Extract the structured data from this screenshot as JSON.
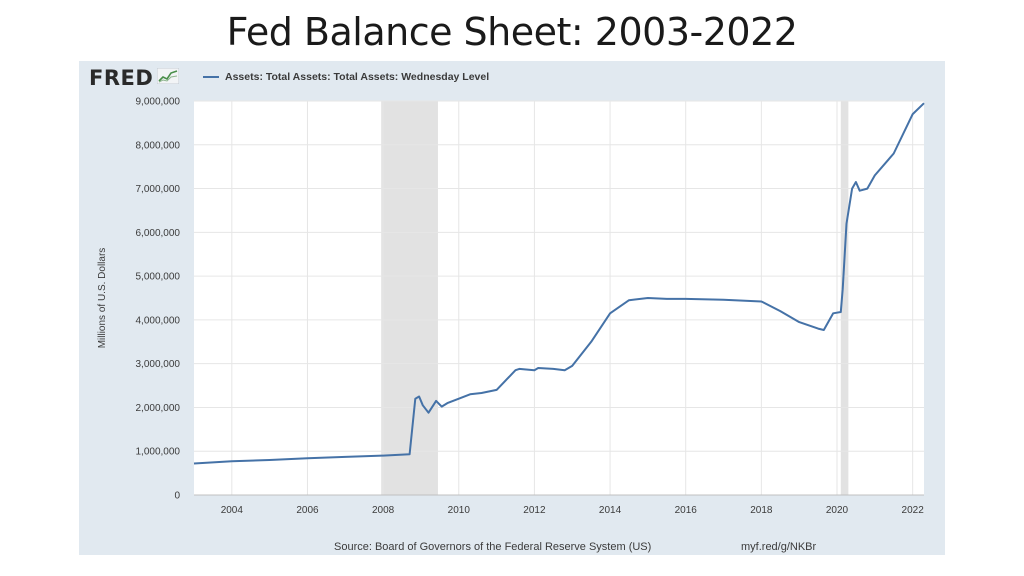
{
  "slide": {
    "title": "Fed Balance Sheet: 2003-2022"
  },
  "fred": {
    "logo_text": "FRED",
    "logo_icon": "fred-chart-icon",
    "source": "Source: Board of Governors of the Federal Reserve System (US)",
    "link": "myf.red/g/NKBr"
  },
  "colors": {
    "line": "#4572a7",
    "panel_bg": "#e1e9f0",
    "recession_shade": "#e2e2e2",
    "grid": "#e6e6e6"
  },
  "chart_data": {
    "type": "line",
    "title": "",
    "xlabel": "",
    "ylabel": "Millions of U.S. Dollars",
    "xlim": [
      2003.0,
      2022.3
    ],
    "ylim": [
      0,
      9000000
    ],
    "grid": true,
    "legend_placement": "top-left",
    "x_ticks": [
      2004,
      2006,
      2008,
      2010,
      2012,
      2014,
      2016,
      2018,
      2020,
      2022
    ],
    "x_tick_labels": [
      "2004",
      "2006",
      "2008",
      "2010",
      "2012",
      "2014",
      "2016",
      "2018",
      "2020",
      "2022"
    ],
    "y_ticks": [
      0,
      1000000,
      2000000,
      3000000,
      4000000,
      5000000,
      6000000,
      7000000,
      8000000,
      9000000
    ],
    "y_tick_labels": [
      "0",
      "1,000,000",
      "2,000,000",
      "3,000,000",
      "4,000,000",
      "5,000,000",
      "6,000,000",
      "7,000,000",
      "8,000,000",
      "9,000,000"
    ],
    "recessions": [
      [
        2007.95,
        2009.45
      ],
      [
        2020.1,
        2020.3
      ]
    ],
    "series": [
      {
        "name": "Assets: Total Assets: Total Assets: Wednesday Level",
        "x": [
          2003.0,
          2004.0,
          2005.0,
          2006.0,
          2007.0,
          2008.0,
          2008.7,
          2008.85,
          2008.95,
          2009.05,
          2009.2,
          2009.4,
          2009.55,
          2009.7,
          2010.0,
          2010.3,
          2010.6,
          2011.0,
          2011.5,
          2011.6,
          2012.0,
          2012.1,
          2012.5,
          2012.8,
          2013.0,
          2013.5,
          2014.0,
          2014.5,
          2015.0,
          2015.5,
          2016.0,
          2017.0,
          2018.0,
          2018.5,
          2019.0,
          2019.5,
          2019.65,
          2019.9,
          2020.1,
          2020.15,
          2020.25,
          2020.4,
          2020.5,
          2020.6,
          2020.8,
          2021.0,
          2021.5,
          2022.0,
          2022.3
        ],
        "values": [
          720000,
          770000,
          800000,
          840000,
          870000,
          900000,
          930000,
          2200000,
          2250000,
          2050000,
          1880000,
          2150000,
          2020000,
          2100000,
          2200000,
          2300000,
          2330000,
          2400000,
          2850000,
          2880000,
          2850000,
          2900000,
          2880000,
          2850000,
          2950000,
          3500000,
          4150000,
          4450000,
          4500000,
          4480000,
          4480000,
          4460000,
          4420000,
          4200000,
          3950000,
          3800000,
          3770000,
          4150000,
          4180000,
          4700000,
          6200000,
          7000000,
          7150000,
          6950000,
          7000000,
          7300000,
          7800000,
          8700000,
          8950000
        ]
      }
    ]
  }
}
